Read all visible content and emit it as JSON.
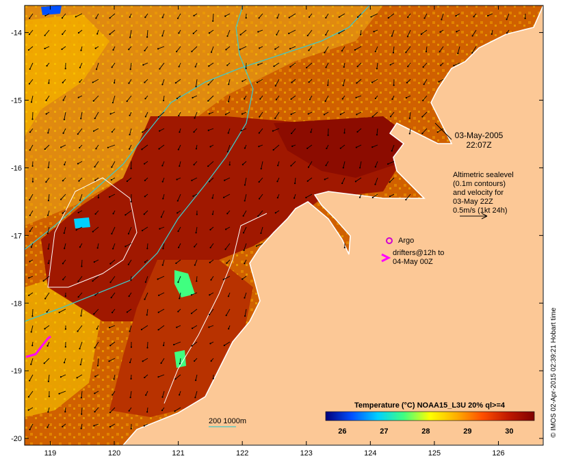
{
  "map": {
    "x_axis": {
      "range": [
        118.6,
        126.7
      ],
      "ticks": [
        "119",
        "120",
        "121",
        "122",
        "123",
        "124",
        "125",
        "126"
      ]
    },
    "y_axis": {
      "range": [
        -20.1,
        -13.6
      ],
      "ticks": [
        "-14",
        "-15",
        "-16",
        "-17",
        "-18",
        "-19",
        "-20"
      ]
    },
    "colors": {
      "land": "#fcc896",
      "sst_hot": "#9c1200",
      "sst_warm": "#d45a00",
      "sst_mid": "#f0a000",
      "sst_cool": "#ffd700",
      "isobath": "#40c8c8",
      "sealevel_contour": "#ffffff",
      "drifter": "#ff00ff",
      "argo": "#d000d0"
    }
  },
  "annotations": {
    "date": "03-May-2005",
    "time": "22:07Z",
    "altimetry": [
      "Altimetric sealevel",
      "(0.1m contours)",
      "and velocity for",
      "03-May 22Z",
      "0.5m/s (1kt 24h)"
    ],
    "argo_label": "Argo",
    "drifters": [
      "drifters@12h to",
      "04-May 00Z"
    ],
    "isobath_label": "200  1000m"
  },
  "colorbar": {
    "title": "Temperature (°C) NOAA15_L3U 20% ql>=4",
    "ticks": [
      "26",
      "27",
      "28",
      "29",
      "30"
    ],
    "stops": [
      "#00007a",
      "#0050ff",
      "#00d0ff",
      "#40ff80",
      "#ffff00",
      "#ffb000",
      "#ff5000",
      "#c01800",
      "#800000"
    ]
  },
  "credit": "© IMOS 02-Apr-2015 02:39:21 Hobart time"
}
